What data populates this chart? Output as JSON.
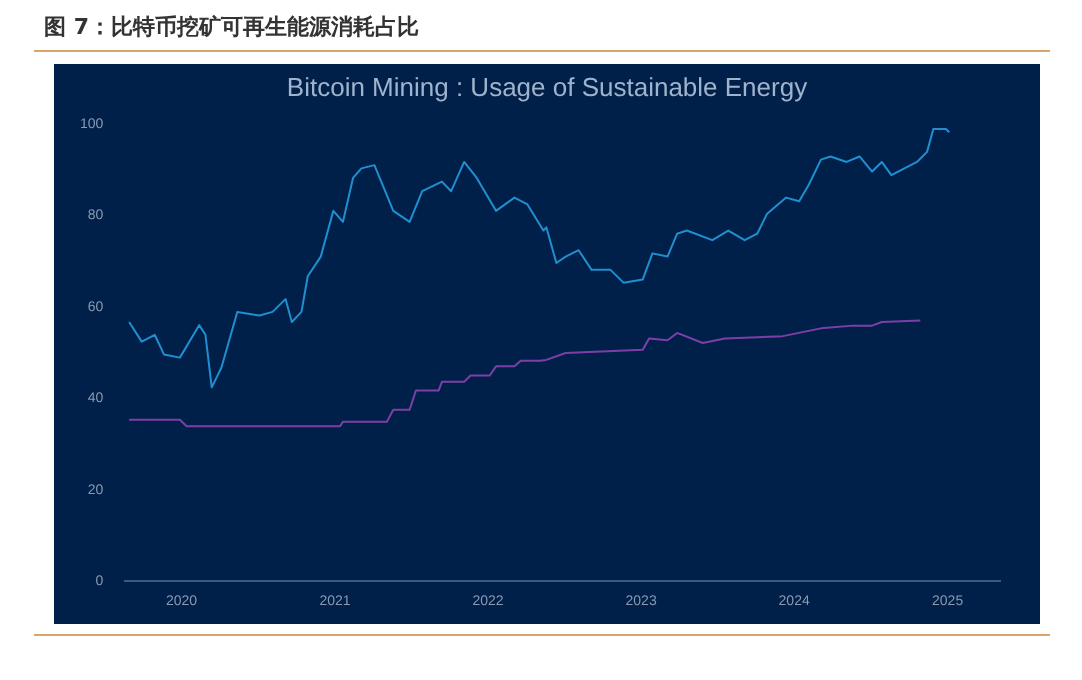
{
  "chart_data": {
    "type": "line",
    "title": "图 7：比特币挖矿可再生能源消耗占比",
    "subtitle": "Bitcoin Mining : Usage of Sustainable Energy",
    "series": [
      {
        "color": "#1f8fd0",
        "x": [
          "2019-08-29",
          "2019-09-28",
          "2019-10-29",
          "2019-11-20",
          "2019-12-28",
          "2020-02-12",
          "2020-02-27",
          "2020-03-13",
          "2020-04-05",
          "2020-05-13",
          "2020-07-05",
          "2020-08-05",
          "2020-09-05",
          "2020-09-20",
          "2020-10-13",
          "2020-10-28",
          "2020-11-28",
          "2020-12-28",
          "2021-01-20",
          "2021-02-13",
          "2021-03-05",
          "2021-04-05",
          "2021-05-20",
          "2021-06-28",
          "2021-07-28",
          "2021-09-13",
          "2021-10-05",
          "2021-11-05",
          "2021-12-05",
          "2022-01-20",
          "2022-03-05",
          "2022-04-05",
          "2022-05-13",
          "2022-05-20",
          "2022-06-13",
          "2022-07-05",
          "2022-08-05",
          "2022-09-05",
          "2022-10-20",
          "2022-11-20",
          "2023-01-05",
          "2023-01-28",
          "2023-03-05",
          "2023-03-28",
          "2023-04-20",
          "2023-06-20",
          "2023-07-28",
          "2023-09-05",
          "2023-10-05",
          "2023-10-28",
          "2023-12-13",
          "2024-01-13",
          "2024-02-05",
          "2024-03-05",
          "2024-03-28",
          "2024-05-05",
          "2024-06-05",
          "2024-07-05",
          "2024-07-28",
          "2024-08-20",
          "2024-09-20",
          "2024-10-20",
          "2024-11-13",
          "2024-11-28",
          "2024-12-28",
          "2025-01-05"
        ],
        "values": [
          56.7,
          52.4,
          53.9,
          49.6,
          48.9,
          56,
          53.9,
          42.4,
          46.7,
          58.9,
          58.1,
          58.9,
          61.7,
          56.7,
          58.9,
          66.7,
          71,
          81,
          78.6,
          88.2,
          90.3,
          91,
          81,
          78.6,
          85.3,
          87.4,
          85.3,
          91.7,
          88.2,
          81,
          83.9,
          82.4,
          76.7,
          77.4,
          69.6,
          71,
          72.4,
          68.1,
          68.1,
          65.3,
          66,
          71.7,
          71,
          76,
          76.7,
          74.6,
          76.7,
          74.6,
          76,
          80.3,
          83.9,
          83.1,
          86.7,
          92.2,
          92.9,
          91.7,
          92.9,
          89.6,
          91.7,
          88.8,
          90.3,
          91.7,
          93.9,
          98.9,
          98.9,
          98.2
        ]
      },
      {
        "color": "#7d3fa6",
        "x": [
          "2019-08-29",
          "2019-12-28",
          "2020-01-13",
          "2021-01-13",
          "2021-01-20",
          "2021-05-05",
          "2021-05-20",
          "2021-06-28",
          "2021-07-13",
          "2021-09-05",
          "2021-09-13",
          "2021-11-05",
          "2021-11-20",
          "2022-01-05",
          "2022-01-20",
          "2022-03-05",
          "2022-03-20",
          "2022-05-05",
          "2022-05-20",
          "2022-07-05",
          "2023-01-05",
          "2023-01-20",
          "2023-03-05",
          "2023-03-28",
          "2023-05-28",
          "2023-07-20",
          "2023-12-05",
          "2024-03-05",
          "2024-05-20",
          "2024-07-05",
          "2024-07-28",
          "2024-10-28"
        ],
        "values": [
          35.3,
          35.3,
          33.9,
          33.9,
          34.9,
          34.9,
          37.5,
          37.5,
          41.7,
          41.7,
          43.6,
          43.6,
          45,
          45,
          47,
          47,
          48.2,
          48.2,
          48.4,
          49.9,
          50.6,
          53.1,
          52.7,
          54.3,
          52.1,
          53.1,
          53.6,
          55.3,
          55.9,
          55.9,
          56.7,
          57
        ]
      }
    ],
    "xlim": [
      "2019-08-20",
      "2025-05-06"
    ],
    "xticks": [
      "2020",
      "2021",
      "2022",
      "2023",
      "2024",
      "2025"
    ],
    "ylim": [
      0,
      100
    ],
    "yticks": [
      0,
      20,
      40,
      60,
      80,
      100
    ],
    "grid": false,
    "legend": false,
    "marker": "none",
    "line_style": "solid"
  }
}
